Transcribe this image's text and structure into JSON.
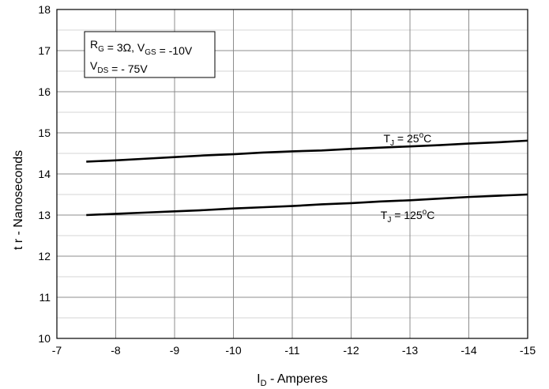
{
  "chart_data": {
    "type": "line",
    "xlabel": {
      "main": "I",
      "sub": "D",
      "rest": " - Amperes"
    },
    "ylabel": "t r - Nanoseconds",
    "xlim": [
      -7,
      -15
    ],
    "ylim": [
      10,
      18
    ],
    "xticks": [
      -7,
      -8,
      -9,
      -10,
      -11,
      -12,
      -13,
      -14,
      -15
    ],
    "yticks": [
      10,
      11,
      12,
      13,
      14,
      15,
      16,
      17,
      18
    ],
    "grid": true,
    "conditions": {
      "line1": [
        {
          "t": "R",
          "sub": "G"
        },
        {
          "t": " = 3Ω, V"
        },
        {
          "t": "",
          "sub": "GS"
        },
        {
          "t": " = -10V"
        }
      ],
      "line2": [
        {
          "t": "V",
          "sub": "DS"
        },
        {
          "t": " = - 75V"
        }
      ]
    },
    "series": [
      {
        "name": "T_J = 25°C",
        "label": {
          "pre": "T",
          "sub": "J",
          "mid": " = 25",
          "sup": "o",
          "post": "C"
        },
        "x": [
          -7.5,
          -8,
          -8.5,
          -9,
          -9.5,
          -10,
          -10.5,
          -11,
          -11.5,
          -12,
          -12.5,
          -13,
          -13.5,
          -14,
          -14.5,
          -15
        ],
        "y": [
          14.3,
          14.33,
          14.37,
          14.41,
          14.45,
          14.48,
          14.52,
          14.55,
          14.57,
          14.61,
          14.64,
          14.67,
          14.7,
          14.74,
          14.77,
          14.81
        ]
      },
      {
        "name": "T_J = 125°C",
        "label": {
          "pre": "T",
          "sub": "J",
          "mid": " = 125",
          "sup": "o",
          "post": "C"
        },
        "x": [
          -7.5,
          -8,
          -8.5,
          -9,
          -9.5,
          -10,
          -10.5,
          -11,
          -11.5,
          -12,
          -12.5,
          -13,
          -13.5,
          -14,
          -14.5,
          -15
        ],
        "y": [
          13.0,
          13.03,
          13.06,
          13.09,
          13.12,
          13.16,
          13.19,
          13.22,
          13.26,
          13.29,
          13.33,
          13.36,
          13.4,
          13.44,
          13.47,
          13.5
        ]
      }
    ]
  }
}
